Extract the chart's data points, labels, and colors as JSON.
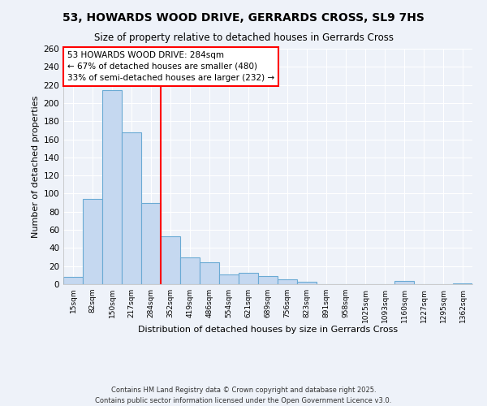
{
  "title": "53, HOWARDS WOOD DRIVE, GERRARDS CROSS, SL9 7HS",
  "subtitle": "Size of property relative to detached houses in Gerrards Cross",
  "xlabel": "Distribution of detached houses by size in Gerrards Cross",
  "ylabel": "Number of detached properties",
  "bar_labels": [
    "15sqm",
    "82sqm",
    "150sqm",
    "217sqm",
    "284sqm",
    "352sqm",
    "419sqm",
    "486sqm",
    "554sqm",
    "621sqm",
    "689sqm",
    "756sqm",
    "823sqm",
    "891sqm",
    "958sqm",
    "1025sqm",
    "1093sqm",
    "1160sqm",
    "1227sqm",
    "1295sqm",
    "1362sqm"
  ],
  "bar_values": [
    8,
    94,
    214,
    168,
    90,
    53,
    30,
    24,
    11,
    13,
    9,
    5,
    3,
    0,
    0,
    0,
    0,
    4,
    0,
    0,
    1
  ],
  "bar_color": "#c5d8f0",
  "bar_edgecolor": "#6aaad4",
  "vline_x_idx": 4,
  "vline_color": "red",
  "ylim": [
    0,
    260
  ],
  "yticks": [
    0,
    20,
    40,
    60,
    80,
    100,
    120,
    140,
    160,
    180,
    200,
    220,
    240,
    260
  ],
  "annotation_lines": [
    "53 HOWARDS WOOD DRIVE: 284sqm",
    "← 67% of detached houses are smaller (480)",
    "33% of semi-detached houses are larger (232) →"
  ],
  "annotation_box_color": "white",
  "annotation_border_color": "red",
  "footer_lines": [
    "Contains HM Land Registry data © Crown copyright and database right 2025.",
    "Contains public sector information licensed under the Open Government Licence v3.0."
  ],
  "background_color": "#eef2f9",
  "grid_color": "white"
}
